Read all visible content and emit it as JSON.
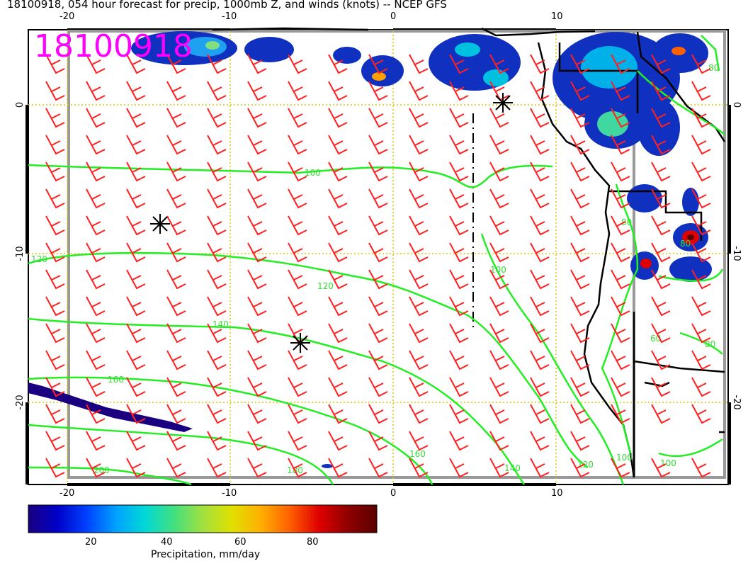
{
  "header": {
    "title": "18100918, 054 hour forecast for precip, 1000mb Z, and winds (knots) -- NCEP GFS",
    "stamp": "18100918"
  },
  "axes": {
    "top_lon_labels": [
      "-20",
      "-10",
      "0",
      "10"
    ],
    "bottom_lon_labels": [
      "-20",
      "-10",
      "0",
      "10"
    ],
    "left_lat_labels": [
      "0",
      "-10",
      "-20"
    ],
    "right_lat_labels": [
      "0",
      "-10",
      "-20"
    ]
  },
  "contours": {
    "labels": [
      "100",
      "120",
      "120",
      "140",
      "140",
      "160",
      "160",
      "180",
      "200",
      "120",
      "100",
      "80",
      "80",
      "60",
      "80",
      "100",
      "100",
      "80"
    ]
  },
  "colorbar": {
    "label": "Precipitation, mm/day",
    "ticks": [
      "20",
      "40",
      "60",
      "80"
    ],
    "colors": [
      "#1a0080",
      "#0000c8",
      "#0040ff",
      "#00a0ff",
      "#00d8d8",
      "#40e080",
      "#a0e040",
      "#e0e000",
      "#ffb000",
      "#ff6000",
      "#e00000",
      "#900000",
      "#5a0000"
    ]
  },
  "styles": {
    "wind_color": "#ff2020",
    "contour_color": "#22ee22",
    "grid_color": "#d8c800",
    "coast_color": "#000000"
  }
}
